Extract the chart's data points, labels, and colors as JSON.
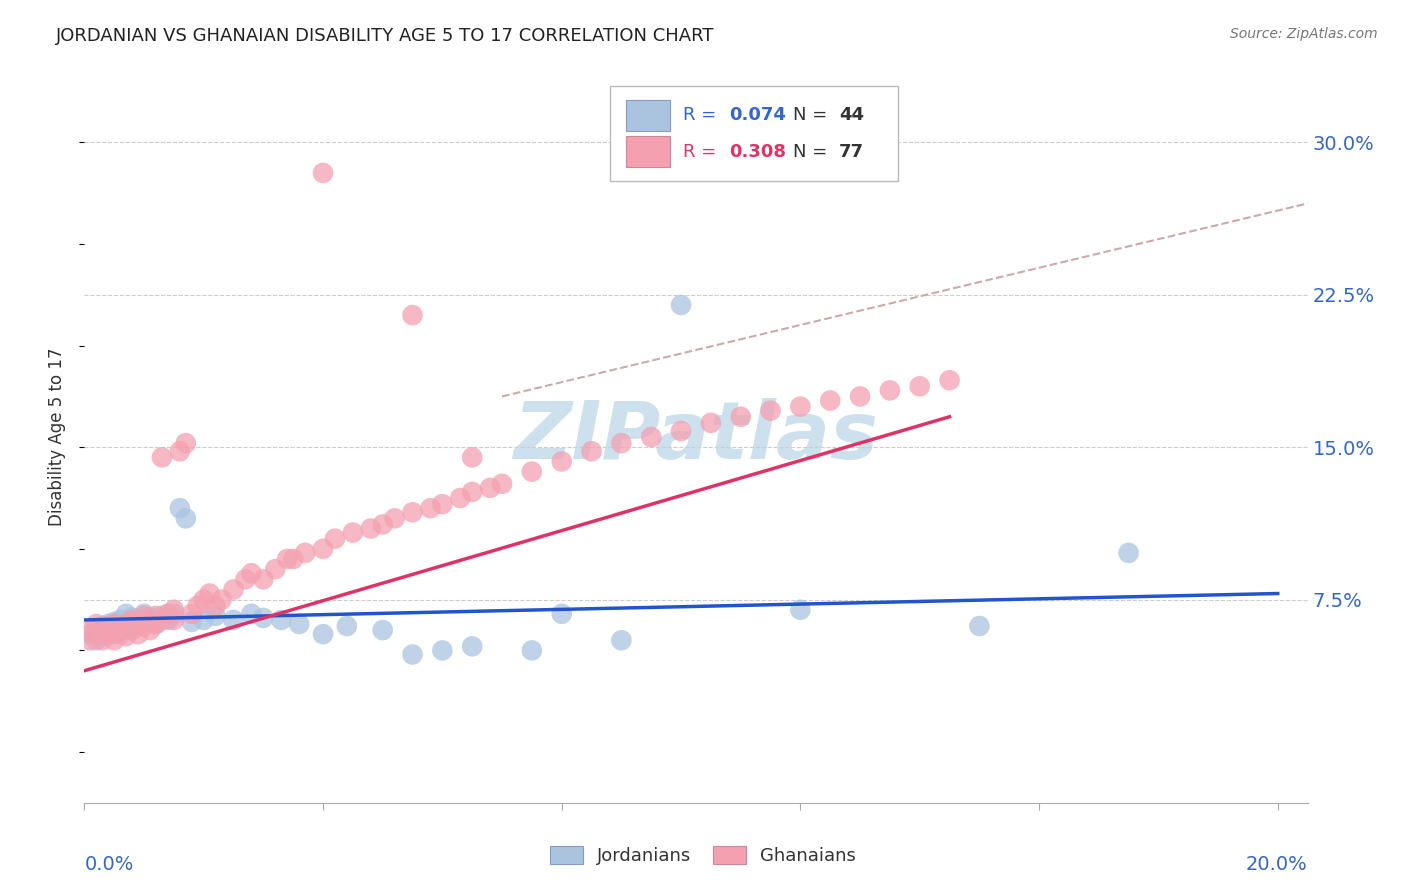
{
  "title": "JORDANIAN VS GHANAIAN DISABILITY AGE 5 TO 17 CORRELATION CHART",
  "source": "Source: ZipAtlas.com",
  "ylabel": "Disability Age 5 to 17",
  "ytick_labels": [
    "7.5%",
    "15.0%",
    "22.5%",
    "30.0%"
  ],
  "ytick_values": [
    0.075,
    0.15,
    0.225,
    0.3
  ],
  "xlim": [
    0.0,
    0.205
  ],
  "ylim": [
    -0.025,
    0.335
  ],
  "yplot_min": 0.0,
  "yplot_max": 0.3,
  "legend_r_jordan": "0.074",
  "legend_n_jordan": "44",
  "legend_r_ghana": "0.308",
  "legend_n_ghana": "77",
  "jordan_color": "#aac4e0",
  "ghana_color": "#f4a0b0",
  "line_jordan_color": "#2255cc",
  "line_ghana_color": "#dd3366",
  "dashed_line_color": "#ccaaaa",
  "background_color": "#ffffff",
  "grid_color": "#cccccc",
  "title_color": "#222222",
  "source_color": "#777777",
  "axis_label_color": "#333333",
  "tick_label_color": "#3366cc",
  "watermark_color": "#cce0ee",
  "jordan_line_x0": 0.0,
  "jordan_line_y0": 0.065,
  "jordan_line_x1": 0.2,
  "jordan_line_y1": 0.078,
  "ghana_line_x0": 0.0,
  "ghana_line_y0": 0.04,
  "ghana_line_x1": 0.145,
  "ghana_line_y1": 0.165,
  "dashed_line_x0": 0.07,
  "dashed_line_y0": 0.175,
  "dashed_line_x1": 0.205,
  "dashed_line_y1": 0.27,
  "jordan_pts_x": [
    0.001,
    0.002,
    0.002,
    0.003,
    0.003,
    0.004,
    0.004,
    0.005,
    0.005,
    0.006,
    0.006,
    0.007,
    0.008,
    0.008,
    0.009,
    0.01,
    0.011,
    0.012,
    0.013,
    0.014,
    0.015,
    0.016,
    0.017,
    0.018,
    0.02,
    0.022,
    0.025,
    0.028,
    0.03,
    0.033,
    0.036,
    0.04,
    0.044,
    0.05,
    0.055,
    0.06,
    0.065,
    0.075,
    0.08,
    0.09,
    0.1,
    0.12,
    0.15,
    0.175
  ],
  "jordan_pts_y": [
    0.058,
    0.06,
    0.055,
    0.062,
    0.057,
    0.063,
    0.059,
    0.064,
    0.058,
    0.06,
    0.065,
    0.068,
    0.066,
    0.062,
    0.065,
    0.068,
    0.066,
    0.063,
    0.067,
    0.065,
    0.068,
    0.12,
    0.115,
    0.064,
    0.065,
    0.067,
    0.065,
    0.068,
    0.066,
    0.065,
    0.063,
    0.058,
    0.062,
    0.06,
    0.048,
    0.05,
    0.052,
    0.05,
    0.068,
    0.055,
    0.22,
    0.07,
    0.062,
    0.098
  ],
  "ghana_pts_x": [
    0.001,
    0.001,
    0.002,
    0.002,
    0.003,
    0.003,
    0.004,
    0.004,
    0.005,
    0.005,
    0.005,
    0.006,
    0.006,
    0.007,
    0.007,
    0.008,
    0.008,
    0.009,
    0.009,
    0.01,
    0.01,
    0.011,
    0.011,
    0.012,
    0.012,
    0.013,
    0.013,
    0.014,
    0.015,
    0.015,
    0.016,
    0.017,
    0.018,
    0.019,
    0.02,
    0.021,
    0.022,
    0.023,
    0.025,
    0.027,
    0.028,
    0.03,
    0.032,
    0.034,
    0.035,
    0.037,
    0.04,
    0.042,
    0.045,
    0.048,
    0.05,
    0.052,
    0.055,
    0.058,
    0.06,
    0.063,
    0.065,
    0.068,
    0.07,
    0.075,
    0.08,
    0.085,
    0.09,
    0.095,
    0.1,
    0.105,
    0.11,
    0.115,
    0.12,
    0.125,
    0.13,
    0.135,
    0.14,
    0.145,
    0.04,
    0.055,
    0.065
  ],
  "ghana_pts_y": [
    0.055,
    0.06,
    0.058,
    0.063,
    0.06,
    0.055,
    0.062,
    0.058,
    0.063,
    0.06,
    0.055,
    0.062,
    0.058,
    0.063,
    0.057,
    0.065,
    0.06,
    0.063,
    0.058,
    0.067,
    0.062,
    0.065,
    0.06,
    0.067,
    0.063,
    0.065,
    0.145,
    0.068,
    0.07,
    0.065,
    0.148,
    0.152,
    0.068,
    0.072,
    0.075,
    0.078,
    0.072,
    0.075,
    0.08,
    0.085,
    0.088,
    0.085,
    0.09,
    0.095,
    0.095,
    0.098,
    0.1,
    0.105,
    0.108,
    0.11,
    0.112,
    0.115,
    0.118,
    0.12,
    0.122,
    0.125,
    0.128,
    0.13,
    0.132,
    0.138,
    0.143,
    0.148,
    0.152,
    0.155,
    0.158,
    0.162,
    0.165,
    0.168,
    0.17,
    0.173,
    0.175,
    0.178,
    0.18,
    0.183,
    0.285,
    0.215,
    0.145
  ]
}
